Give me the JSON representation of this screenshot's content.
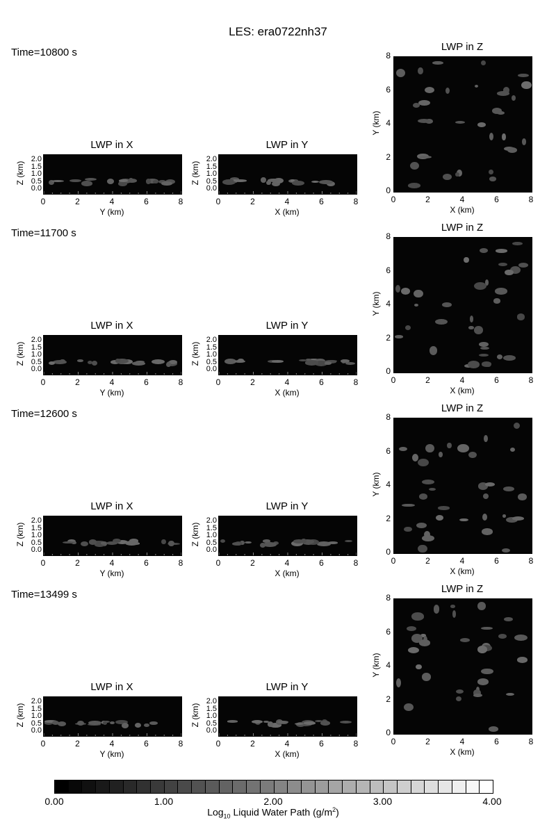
{
  "figure": {
    "title": "LES: era0722nh37"
  },
  "panel_titles": {
    "x": "LWP in X",
    "y": "LWP in Y",
    "z": "LWP in Z"
  },
  "axis_labels": {
    "y_km": "Y (km)",
    "x_km": "X (km)",
    "z_km": "Z (km)"
  },
  "ticks": {
    "horiz": [
      "0",
      "2",
      "4",
      "6",
      "8"
    ],
    "z": [
      "0.0",
      "0.5",
      "1.0",
      "1.5",
      "2.0"
    ],
    "y_map": [
      "0",
      "2",
      "4",
      "6",
      "8"
    ]
  },
  "times": [
    "Time=10800 s",
    "Time=11700 s",
    "Time=12600 s",
    "Time=13499 s"
  ],
  "colorbar": {
    "ticks": [
      "0.00",
      "1.00",
      "2.00",
      "3.00",
      "4.00"
    ],
    "label_main": "Log",
    "label_sub": "10",
    "label_rest": " Liquid Water Path (g/m",
    "label_sup": "2",
    "label_end": ")",
    "min": 0,
    "max": 4,
    "levels": 32,
    "colors": [
      "#000000",
      "#ffffff"
    ]
  },
  "chart_data": {
    "type": "heatmap",
    "title": "LES: era0722nh37",
    "colormap": "grayscale",
    "value_range": [
      0,
      4
    ],
    "x_range_km": [
      0,
      8
    ],
    "y_range_km": [
      0,
      8
    ],
    "z_range_km": [
      0,
      2.2
    ],
    "snapshots": [
      {
        "time_s": 10800
      },
      {
        "time_s": 11700
      },
      {
        "time_s": 12600
      },
      {
        "time_s": 13499
      }
    ]
  }
}
